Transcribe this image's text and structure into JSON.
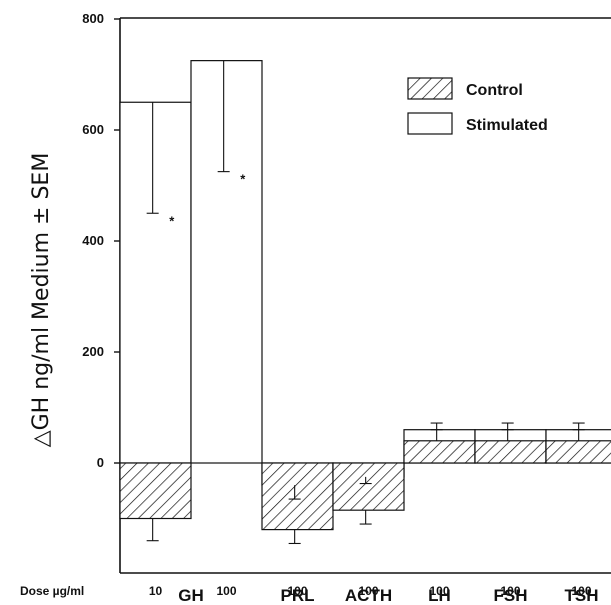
{
  "chart_data": {
    "type": "bar",
    "ylabel": "△GH ng/ml Medium ± SEM",
    "ylim": [
      -200,
      800
    ],
    "yticks": [
      0,
      200,
      400,
      600,
      800
    ],
    "dose_label": "Dose µg/ml",
    "groups": [
      {
        "hormone": "GH",
        "dose": "10",
        "control": -100,
        "control_err": 40,
        "stimulated": 650,
        "stimulated_err": 200,
        "significant": true
      },
      {
        "hormone": "GH",
        "dose": "100",
        "control": null,
        "control_err": null,
        "stimulated": 725,
        "stimulated_err": 200,
        "significant": true
      },
      {
        "hormone": "PRL",
        "dose": "100",
        "control": -120,
        "control_err": 25,
        "stimulated": -40,
        "stimulated_err": 25,
        "significant": false
      },
      {
        "hormone": "ACTH",
        "dose": "100",
        "control": -85,
        "control_err": 25,
        "stimulated": -25,
        "stimulated_err": 12,
        "significant": false
      },
      {
        "hormone": "LH",
        "dose": "100",
        "control": 40,
        "control_err": 20,
        "stimulated": 60,
        "stimulated_err": 12,
        "significant": false
      },
      {
        "hormone": "FSH",
        "dose": "100",
        "control": 40,
        "control_err": 20,
        "stimulated": 60,
        "stimulated_err": 12,
        "significant": false
      },
      {
        "hormone": "TSH",
        "dose": "100",
        "control": 40,
        "control_err": 20,
        "stimulated": 60,
        "stimulated_err": 12,
        "significant": false
      }
    ],
    "categories": [
      {
        "label": "GH",
        "span": [
          0,
          1
        ]
      },
      {
        "label": "PRL",
        "span": [
          2,
          2
        ]
      },
      {
        "label": "ACTH",
        "span": [
          3,
          3
        ]
      },
      {
        "label": "LH",
        "span": [
          4,
          4
        ]
      },
      {
        "label": "FSH",
        "span": [
          5,
          5
        ]
      },
      {
        "label": "TSH",
        "span": [
          6,
          6
        ]
      }
    ],
    "legend": {
      "placement": "top-right",
      "entries": [
        {
          "name": "Control",
          "style": "hatched"
        },
        {
          "name": "Stimulated",
          "style": "open"
        }
      ]
    },
    "significance_marker": "*"
  }
}
